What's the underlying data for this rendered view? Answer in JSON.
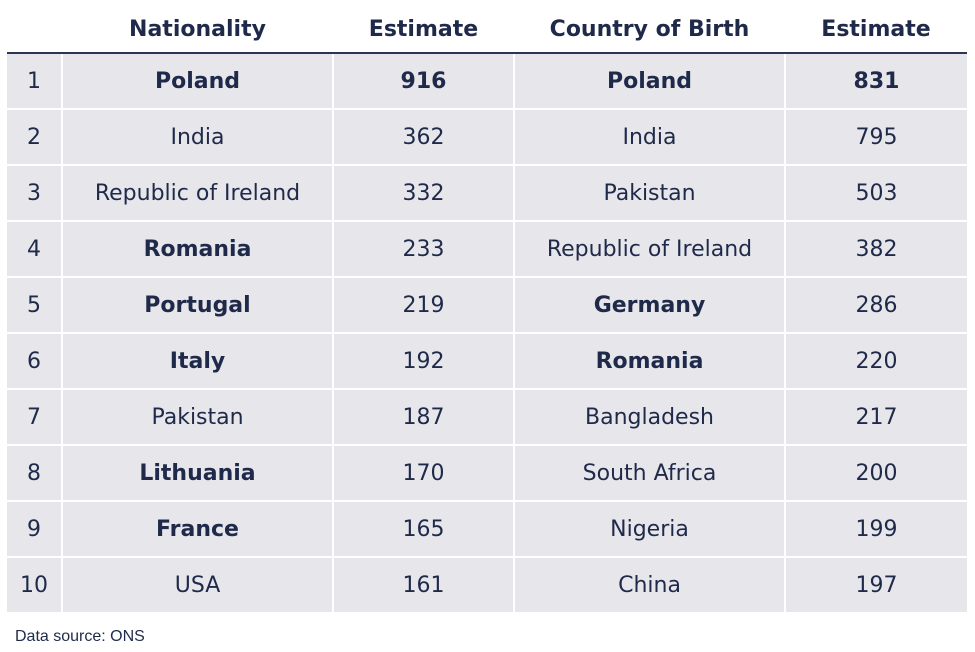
{
  "chart_data": {
    "type": "table",
    "columns": [
      "",
      "Nationality",
      "Estimate",
      "Country of Birth",
      "Estimate"
    ],
    "rows": [
      {
        "rank": "1",
        "nationality": "Poland",
        "nat_est": "916",
        "birth": "Poland",
        "birth_est": "831",
        "nat_bold": true,
        "nat_est_bold": true,
        "birth_bold": true,
        "birth_est_bold": true
      },
      {
        "rank": "2",
        "nationality": "India",
        "nat_est": "362",
        "birth": "India",
        "birth_est": "795",
        "nat_bold": false,
        "nat_est_bold": false,
        "birth_bold": false,
        "birth_est_bold": false
      },
      {
        "rank": "3",
        "nationality": "Republic of Ireland",
        "nat_est": "332",
        "birth": "Pakistan",
        "birth_est": "503",
        "nat_bold": false,
        "nat_est_bold": false,
        "birth_bold": false,
        "birth_est_bold": false
      },
      {
        "rank": "4",
        "nationality": "Romania",
        "nat_est": "233",
        "birth": "Republic of Ireland",
        "birth_est": "382",
        "nat_bold": true,
        "nat_est_bold": false,
        "birth_bold": false,
        "birth_est_bold": false
      },
      {
        "rank": "5",
        "nationality": "Portugal",
        "nat_est": "219",
        "birth": "Germany",
        "birth_est": "286",
        "nat_bold": true,
        "nat_est_bold": false,
        "birth_bold": true,
        "birth_est_bold": false
      },
      {
        "rank": "6",
        "nationality": "Italy",
        "nat_est": "192",
        "birth": "Romania",
        "birth_est": "220",
        "nat_bold": true,
        "nat_est_bold": false,
        "birth_bold": true,
        "birth_est_bold": false
      },
      {
        "rank": "7",
        "nationality": "Pakistan",
        "nat_est": "187",
        "birth": "Bangladesh",
        "birth_est": "217",
        "nat_bold": false,
        "nat_est_bold": false,
        "birth_bold": false,
        "birth_est_bold": false
      },
      {
        "rank": "8",
        "nationality": "Lithuania",
        "nat_est": "170",
        "birth": "South Africa",
        "birth_est": "200",
        "nat_bold": true,
        "nat_est_bold": false,
        "birth_bold": false,
        "birth_est_bold": false
      },
      {
        "rank": "9",
        "nationality": "France",
        "nat_est": "165",
        "birth": "Nigeria",
        "birth_est": "199",
        "nat_bold": true,
        "nat_est_bold": false,
        "birth_bold": false,
        "birth_est_bold": false
      },
      {
        "rank": "10",
        "nationality": "USA",
        "nat_est": "161",
        "birth": "China",
        "birth_est": "197",
        "nat_bold": false,
        "nat_est_bold": false,
        "birth_bold": false,
        "birth_est_bold": false
      }
    ]
  },
  "source": "Data source: ONS",
  "colors": {
    "text": "#1f2a4a",
    "cell": "#e7e6ea",
    "header_rule": "#2b3653"
  }
}
